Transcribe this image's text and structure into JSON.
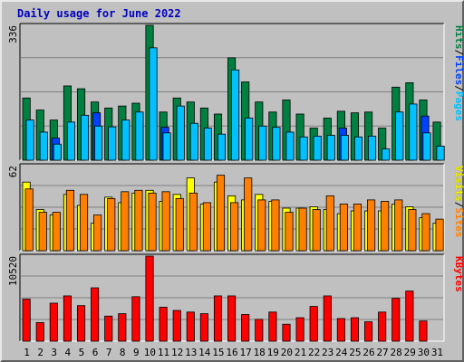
{
  "chart_data": {
    "type": "bar",
    "title": "Daily usage for June 2022",
    "categories": [
      "1",
      "2",
      "3",
      "4",
      "5",
      "6",
      "7",
      "8",
      "9",
      "10",
      "11",
      "12",
      "13",
      "14",
      "15",
      "16",
      "17",
      "18",
      "19",
      "20",
      "21",
      "22",
      "23",
      "24",
      "25",
      "26",
      "27",
      "28",
      "29",
      "30",
      "31"
    ],
    "weekend_days": [
      4,
      5,
      11,
      12,
      18,
      19,
      25,
      26
    ],
    "colors": {
      "hits": "#008040",
      "files": "#0040ff",
      "pages": "#00c0ff",
      "visits": "#ffff00",
      "sites": "#ff8000",
      "kbytes": "#ff0000",
      "weekday_tick": "#000000",
      "weekend_tick": "#008040",
      "title": "#0000c0",
      "label_sep": "#000000"
    },
    "panels": [
      {
        "id": "hits-files-pages",
        "ymax_label": "336",
        "ymax": 336,
        "side_labels": [
          {
            "text": "Pages",
            "color": "#00c0ff"
          },
          {
            "text": "/",
            "color": "#000000"
          },
          {
            "text": "Files",
            "color": "#0040ff"
          },
          {
            "text": "/",
            "color": "#000000"
          },
          {
            "text": "Hits",
            "color": "#008040"
          }
        ],
        "series": [
          {
            "name": "Hits",
            "color": "#008040",
            "values": [
              155,
              125,
              100,
              185,
              178,
              145,
              130,
              135,
              142,
              336,
              120,
              155,
              145,
              130,
              115,
              255,
              195,
              145,
              120,
              150,
              115,
              80,
              105,
              122,
              118,
              120,
              80,
              182,
              193,
              150,
              95
            ]
          },
          {
            "name": "Files",
            "color": "#0040ff",
            "values": [
              0,
              0,
              55,
              0,
              0,
              118,
              0,
              0,
              0,
              0,
              82,
              0,
              0,
              0,
              0,
              0,
              0,
              0,
              0,
              0,
              0,
              0,
              0,
              80,
              0,
              0,
              0,
              0,
              0,
              110,
              0
            ]
          },
          {
            "name": "Pages",
            "color": "#00c0ff",
            "values": [
              100,
              70,
              40,
              95,
              112,
              85,
              83,
              100,
              120,
              280,
              68,
              135,
              92,
              80,
              65,
              225,
              105,
              85,
              82,
              70,
              58,
              60,
              62,
              62,
              58,
              60,
              28,
              120,
              140,
              68,
              35
            ]
          }
        ]
      },
      {
        "id": "visits-sites",
        "ymax_label": "62",
        "ymax": 62,
        "side_labels": [
          {
            "text": "Sites",
            "color": "#ff8000"
          },
          {
            "text": "/",
            "color": "#000000"
          },
          {
            "text": "Visits",
            "color": "#ffff00"
          }
        ],
        "series": [
          {
            "name": "Visits",
            "color": "#ffff00",
            "values": [
              50,
              30,
              26,
              41,
              33,
              20,
              39,
              35,
              42,
              44,
              36,
              41,
              53,
              34,
              50,
              40,
              37,
              41,
              36,
              31,
              31,
              32,
              30,
              27,
              29,
              29,
              29,
              34,
              32,
              24,
              20
            ]
          },
          {
            "name": "Sites",
            "color": "#ff8000",
            "values": [
              45,
              28,
              28,
              44,
              41,
              26,
              38,
              43,
              44,
              42,
              43,
              38,
              42,
              35,
              55,
              35,
              53,
              37,
              37,
              28,
              31,
              30,
              40,
              34,
              34,
              37,
              36,
              37,
              30,
              27,
              23
            ]
          }
        ]
      },
      {
        "id": "kbytes",
        "ymax_label": "10520",
        "ymax": 10520,
        "side_labels": [
          {
            "text": "KBytes",
            "color": "#ff0000"
          }
        ],
        "series": [
          {
            "name": "KBytes",
            "color": "#ff0000",
            "values": [
              5200,
              2300,
              4700,
              5600,
              4400,
              6600,
              3100,
              3400,
              5500,
              10520,
              4200,
              3800,
              3600,
              3400,
              5600,
              5600,
              3300,
              2700,
              3600,
              2100,
              2900,
              4300,
              5600,
              2800,
              2900,
              2400,
              3600,
              5300,
              6200,
              2500,
              0
            ]
          }
        ]
      }
    ]
  }
}
